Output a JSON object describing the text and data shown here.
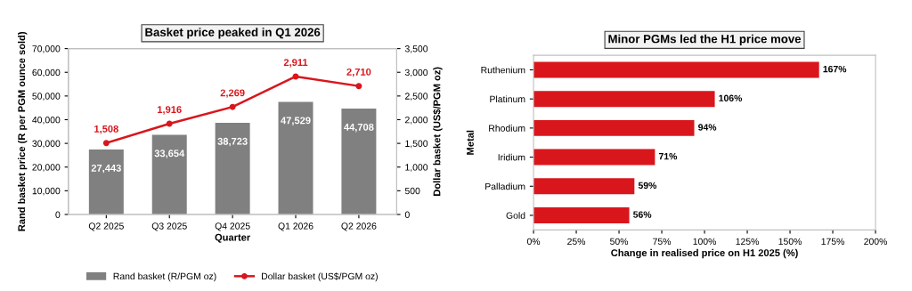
{
  "chart_data": [
    {
      "type": "bar",
      "title": "Basket price peaked in Q1 2026",
      "xlabel": "Quarter",
      "ylabel": "Rand basket price (R per PGM ounce sold)",
      "y2label": "Dollar basket (US$/PGM oz)",
      "categories": [
        "Q2 2025",
        "Q3 2025",
        "Q4 2025",
        "Q1 2026",
        "Q2 2026"
      ],
      "series": [
        {
          "name": "Rand basket (R/PGM oz)",
          "type": "bar",
          "color": "#808080",
          "values": [
            27443,
            33654,
            38723,
            47529,
            44708
          ],
          "value_labels": [
            "27,443",
            "33,654",
            "38,723",
            "47,529",
            "44,708"
          ]
        },
        {
          "name": "Dollar basket (US$/PGM oz)",
          "type": "line",
          "axis": "y2",
          "color": "#d9161c",
          "values": [
            1508,
            1916,
            2269,
            2911,
            2710
          ],
          "value_labels": [
            "1,508",
            "1,916",
            "2,269",
            "2,911",
            "2,710"
          ]
        }
      ],
      "ylim": [
        0,
        70000
      ],
      "yticks": [
        0,
        {
          "value": 10000,
          "label": "10,000"
        },
        {
          "value": 20000,
          "label": "20,000"
        },
        {
          "value": 30000,
          "label": "30,000"
        },
        {
          "value": 40000,
          "label": "40,000"
        },
        {
          "value": 50000,
          "label": "50,000"
        },
        {
          "value": 60000,
          "label": "60,000"
        },
        {
          "value": 70000,
          "label": "70,000"
        }
      ],
      "y2lim": [
        0,
        3500
      ],
      "y2ticks": [
        0,
        500,
        {
          "value": 1000,
          "label": "1,000"
        },
        {
          "value": 1500,
          "label": "1,500"
        },
        {
          "value": 2000,
          "label": "2,000"
        },
        {
          "value": 2500,
          "label": "2,500"
        },
        {
          "value": 3000,
          "label": "3,000"
        },
        {
          "value": 3500,
          "label": "3,500"
        }
      ],
      "legend": "bottom",
      "marker": "circle",
      "grid": false
    },
    {
      "type": "bar",
      "orientation": "horizontal",
      "title": "Minor PGMs led the H1 price move",
      "xlabel": "Change in realised price on H1 2025 (%)",
      "ylabel": "Metal",
      "categories": [
        "Ruthenium",
        "Platinum",
        "Rhodium",
        "Iridium",
        "Palladium",
        "Gold"
      ],
      "values": [
        167,
        106,
        94,
        71,
        59,
        56
      ],
      "color": "#d9161c",
      "value_labels": [
        "167%",
        "106%",
        "94%",
        "71%",
        "59%",
        "56%"
      ],
      "xlim": [
        0,
        200
      ],
      "xticks": [
        {
          "value": 0,
          "label": "0%"
        },
        {
          "value": 25,
          "label": "25%"
        },
        {
          "value": 50,
          "label": "50%"
        },
        {
          "value": 75,
          "label": "75%"
        },
        {
          "value": 100,
          "label": "100%"
        },
        {
          "value": 125,
          "label": "125%"
        },
        {
          "value": 150,
          "label": "150%"
        },
        {
          "value": 175,
          "label": "175%"
        },
        {
          "value": 200,
          "label": "200%"
        }
      ],
      "legend": false,
      "grid": false
    }
  ]
}
